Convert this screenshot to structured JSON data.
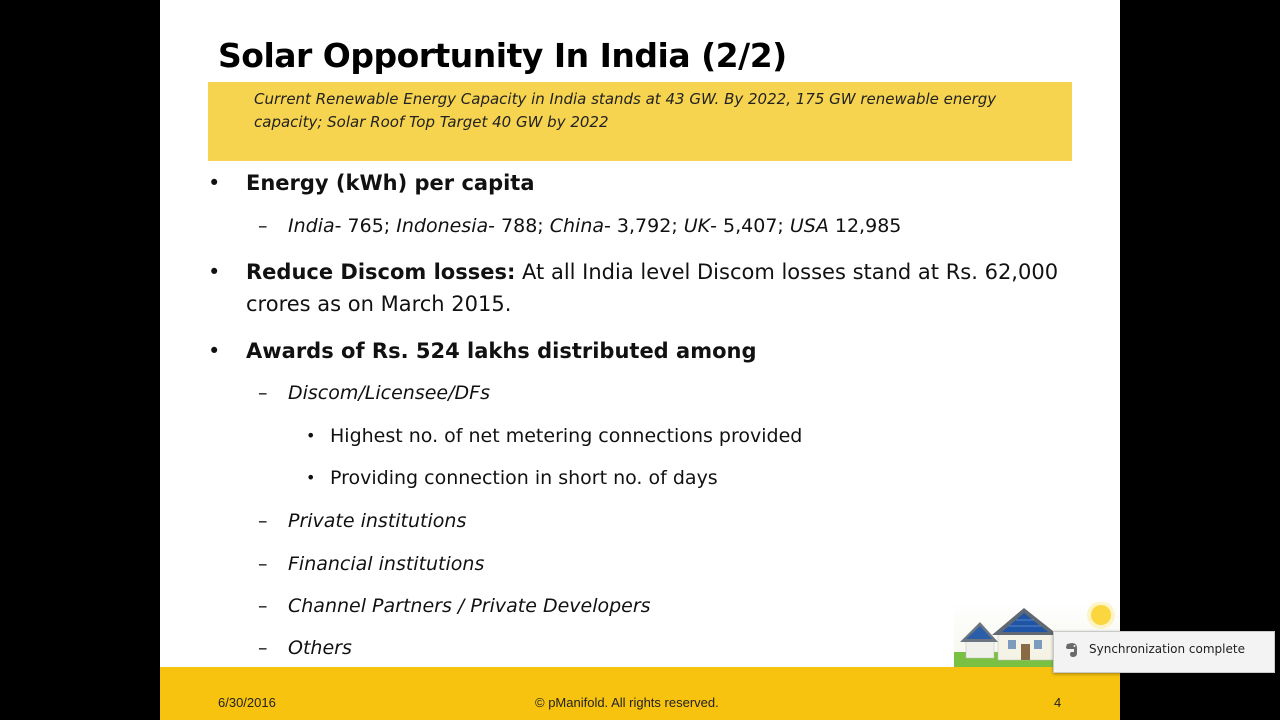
{
  "slide": {
    "title": "Solar Opportunity In India (2/2)",
    "banner": "Current Renewable Energy Capacity in India stands at 43 GW. By 2022, 175 GW renewable energy capacity; Solar Roof Top Target 40 GW by 2022",
    "bullets": {
      "energy": {
        "label": "Energy (kWh) per capita",
        "india_name": "India",
        "india_val": "- 765; ",
        "indonesia_name": "Indonesia",
        "indonesia_val": "- 788; ",
        "china_name": "China",
        "china_val": "- 3,792; ",
        "uk_name": "UK",
        "uk_val": "- 5,407; ",
        "usa_name": "USA",
        "usa_val": " 12,985"
      },
      "discom": {
        "bold": "Reduce Discom losses:",
        "text": " At all India level Discom losses stand at Rs. 62,000 crores as on March 2015."
      },
      "awards": {
        "label": "Awards of Rs. 524 lakhs distributed among",
        "sub1": "Discom/Licensee/DFs",
        "sub1_items": [
          "Highest no. of net metering connections provided",
          "Providing connection in short no. of days"
        ],
        "sub2": "Private institutions",
        "sub3": "Financial institutions",
        "sub4": "Channel Partners / Private Developers",
        "sub5": "Others"
      }
    },
    "footer": {
      "date": "6/30/2016",
      "copyright": "© pManifold. All rights reserved.",
      "page": "4"
    }
  },
  "symbols": {
    "bullet": "•",
    "dash": "–"
  },
  "notification": {
    "text": "Synchronization complete",
    "icon": "evernote-icon"
  },
  "colors": {
    "banner": "#f7d44f",
    "footer": "#f7c30f",
    "background": "#000000"
  }
}
